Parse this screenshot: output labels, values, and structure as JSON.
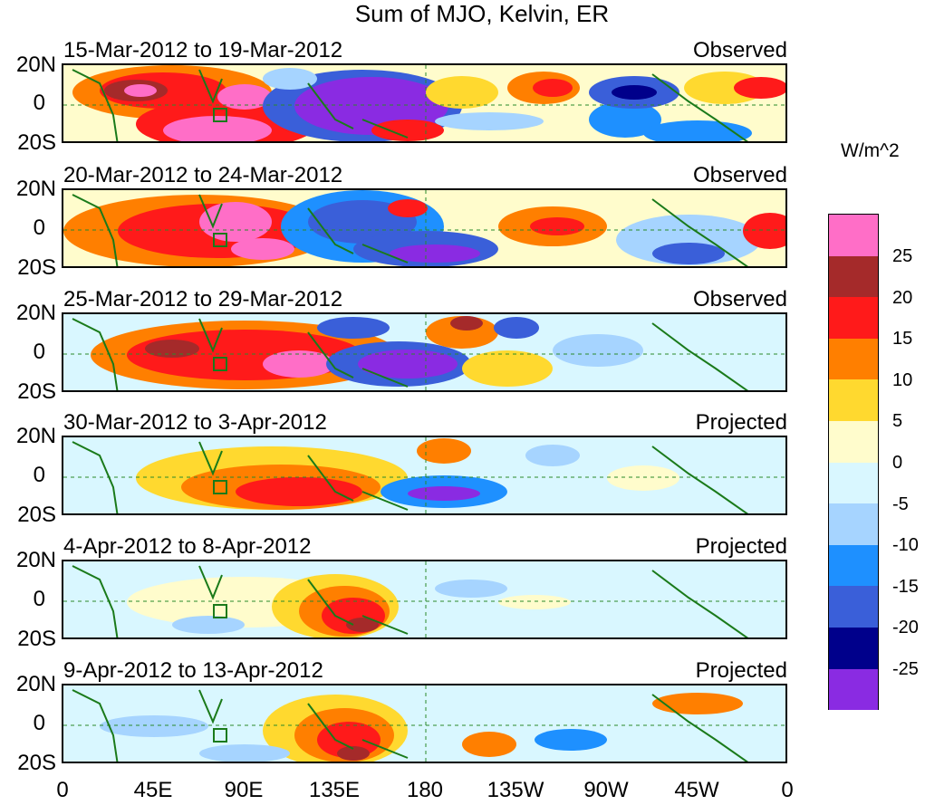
{
  "title": "Sum of MJO, Kelvin, ER",
  "lat_labels": [
    "20N",
    "0",
    "20S"
  ],
  "lon_labels": [
    "0",
    "45E",
    "90E",
    "135E",
    "180",
    "135W",
    "90W",
    "45W",
    "0"
  ],
  "colorbar": {
    "units": "W/m^2",
    "labels": [
      "25",
      "20",
      "15",
      "10",
      "5",
      "0",
      "-5",
      "-10",
      "-15",
      "-20",
      "-25"
    ],
    "colors": [
      "#ff6ec7",
      "#a52a2a",
      "#ff1a1a",
      "#ff7f00",
      "#ffd92f",
      "#fffccc",
      "#d9f7ff",
      "#a6d4ff",
      "#1e90ff",
      "#3a5fd9",
      "#00008b",
      "#8a2be2"
    ]
  },
  "panels": [
    {
      "dates": "15-Mar-2012 to 19-Mar-2012",
      "status": "Observed"
    },
    {
      "dates": "20-Mar-2012 to 24-Mar-2012",
      "status": "Observed"
    },
    {
      "dates": "25-Mar-2012 to 29-Mar-2012",
      "status": "Observed"
    },
    {
      "dates": "30-Mar-2012 to 3-Apr-2012",
      "status": "Projected"
    },
    {
      "dates": "4-Apr-2012 to 8-Apr-2012",
      "status": "Projected"
    },
    {
      "dates": "9-Apr-2012 to 13-Apr-2012",
      "status": "Projected"
    }
  ]
}
